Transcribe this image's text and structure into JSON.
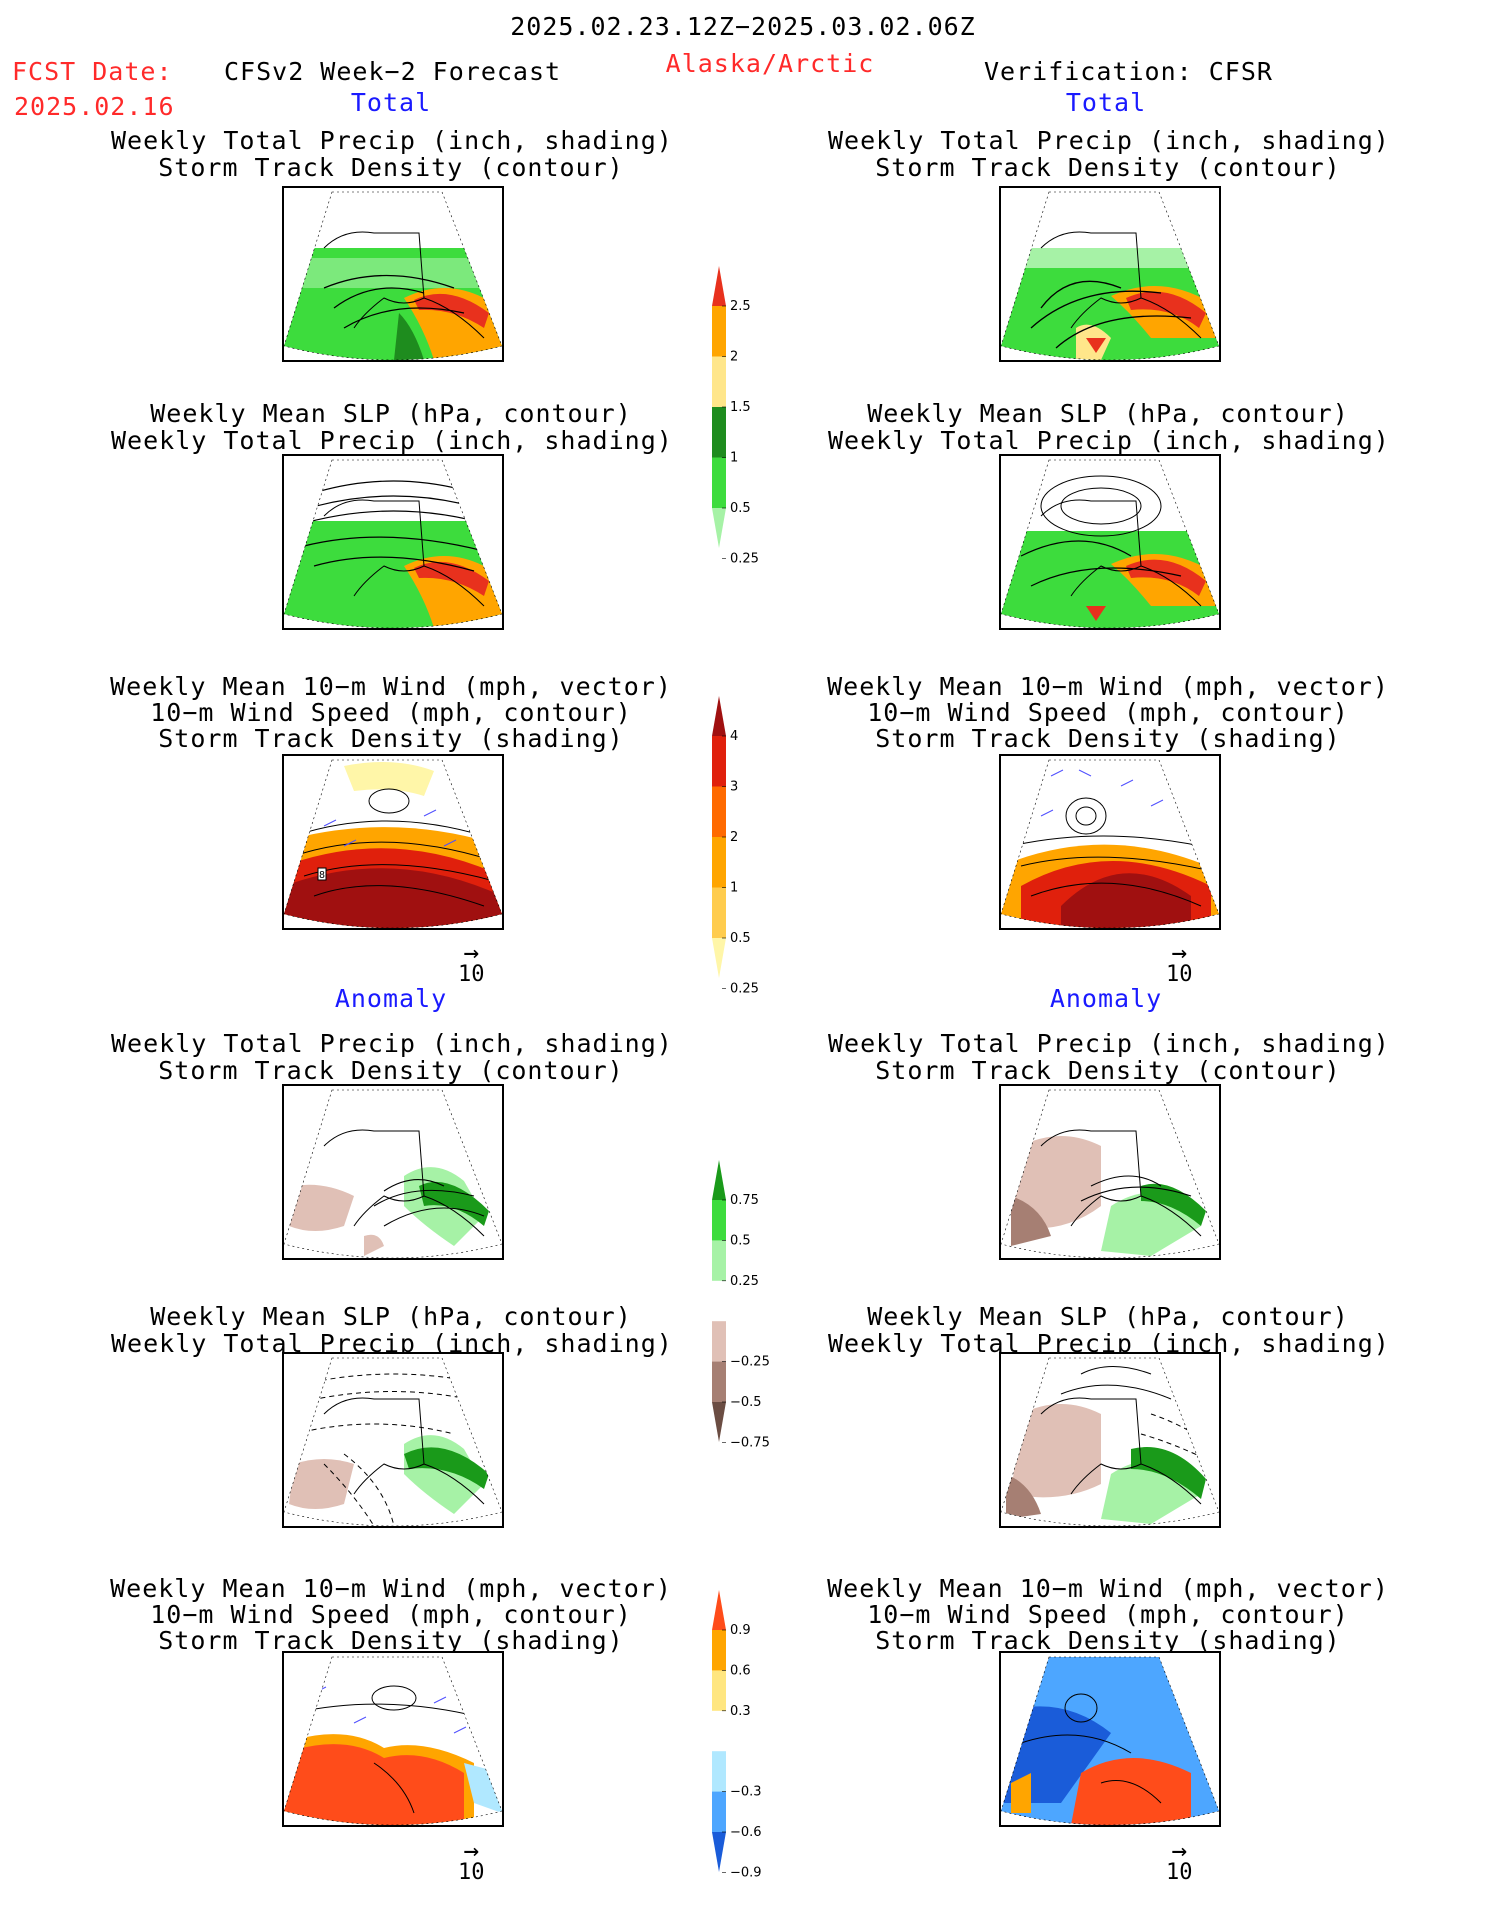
{
  "header": {
    "period": "2025.02.23.12Z−2025.03.02.06Z",
    "fcst_label": "FCST Date:",
    "fcst_date": "2025.02.16",
    "model": "CFSv2 Week−2 Forecast",
    "region": "Alaska/Arctic",
    "verification": "Verification: CFSR"
  },
  "sections": {
    "total": "Total",
    "anomaly": "Anomaly"
  },
  "titles": {
    "p1_l1": "Weekly Total Precip (inch, shading)",
    "p1_l2": "Storm Track Density (contour)",
    "p2_l1": "Weekly Mean SLP (hPa, contour)",
    "p2_l2": "Weekly Total Precip (inch, shading)",
    "p3_l1": "Weekly Mean 10−m Wind (mph, vector)",
    "p3_l2": "10−m Wind Speed (mph, contour)",
    "p3_l3": "Storm Track Density (shading)"
  },
  "vector_ref": "10",
  "panel_marker": "8",
  "colorbars": {
    "precip_total": {
      "labels": [
        "2.5",
        "2",
        "1.5",
        "1",
        "0.5",
        "0.25"
      ],
      "colors": [
        "#e8311d",
        "#ffa500",
        "#ffe68a",
        "#1e8c1e",
        "#3ddc3d",
        "#a6f2a6"
      ]
    },
    "storm_total": {
      "labels": [
        "4",
        "3",
        "2",
        "1",
        "0.5",
        "0.25"
      ],
      "colors": [
        "#a01010",
        "#e0200c",
        "#ff6a00",
        "#ffa500",
        "#ffcc4d",
        "#fff6a8"
      ]
    },
    "precip_anom": {
      "labels": [
        "0.75",
        "0.5",
        "0.25",
        "−0.25",
        "−0.5",
        "−0.75"
      ],
      "colors": [
        "#1a9a1a",
        "#3ddc3d",
        "#a6f2a6",
        "#ffffff",
        "#e0c0b6",
        "#a67f73",
        "#6b4d43"
      ]
    },
    "storm_anom": {
      "labels": [
        "0.9",
        "0.6",
        "0.3",
        "−0.3",
        "−0.6",
        "−0.9"
      ],
      "colors": [
        "#ff4c1a",
        "#ffa500",
        "#ffe680",
        "#ffffff",
        "#b0e8ff",
        "#4da6ff",
        "#1a5cd9"
      ]
    }
  }
}
